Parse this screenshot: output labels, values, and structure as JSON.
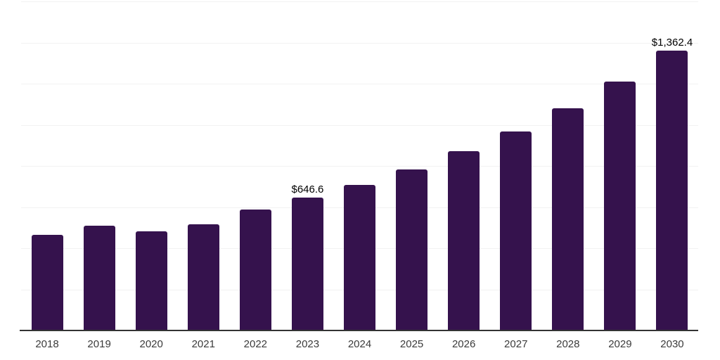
{
  "chart_data": {
    "type": "bar",
    "title": "",
    "xlabel": "",
    "ylabel": "",
    "categories": [
      "2018",
      "2019",
      "2020",
      "2021",
      "2022",
      "2023",
      "2024",
      "2025",
      "2026",
      "2027",
      "2028",
      "2029",
      "2030"
    ],
    "values": [
      465,
      508,
      482,
      518,
      588,
      646.6,
      708,
      783,
      872,
      969,
      1080,
      1212,
      1362.4
    ],
    "data_labels": [
      "",
      "",
      "",
      "",
      "",
      "$646.6",
      "",
      "",
      "",
      "",
      "",
      "",
      "$1,362.4"
    ],
    "ylim": [
      0,
      1600
    ],
    "gridline_step": 200,
    "grid": "on",
    "legend": "none"
  },
  "style": {
    "background": "#ffffff",
    "bar_color": "#35124d",
    "grid_color": "#f2f2f2",
    "axis_color": "#333333",
    "data_label_color": "#000000",
    "tick_label_color": "#3b3b3b"
  }
}
